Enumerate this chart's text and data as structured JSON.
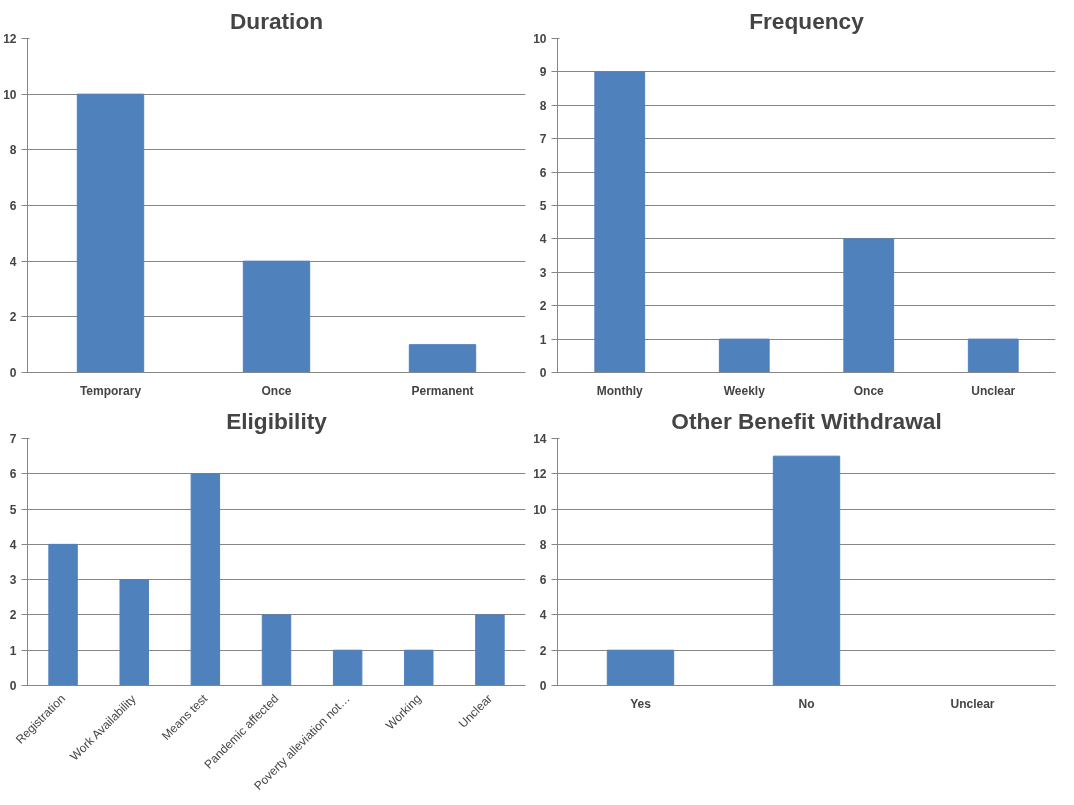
{
  "chart_data": [
    {
      "type": "bar",
      "title": "Duration",
      "categories": [
        "Temporary",
        "Once",
        "Permanent"
      ],
      "values": [
        10,
        4,
        1
      ],
      "color": "#4f81bd",
      "ylim": [
        0,
        12
      ],
      "yticks": [
        0,
        2,
        4,
        6,
        8,
        10,
        12
      ],
      "grid": "y"
    },
    {
      "type": "bar",
      "title": "Frequency",
      "categories": [
        "Monthly",
        "Weekly",
        "Once",
        "Unclear"
      ],
      "values": [
        9,
        1,
        4,
        1
      ],
      "color": "#4f81bd",
      "ylim": [
        0,
        10
      ],
      "yticks": [
        0,
        1,
        2,
        3,
        4,
        5,
        6,
        7,
        8,
        9,
        10
      ],
      "grid": "y"
    },
    {
      "type": "bar",
      "title": "Eligibility",
      "categories": [
        "Registration",
        "Work Availability",
        "Means test",
        "Pandemic affected",
        "Poverty alleviation not…",
        "Working",
        "Unclear"
      ],
      "values": [
        4,
        3,
        6,
        2,
        1,
        1,
        2
      ],
      "color": "#4f81bd",
      "ylim": [
        0,
        7
      ],
      "yticks": [
        0,
        1,
        2,
        3,
        4,
        5,
        6,
        7
      ],
      "grid": "y"
    },
    {
      "type": "bar",
      "title": "Other Benefit Withdrawal",
      "categories": [
        "Yes",
        "No",
        "Unclear"
      ],
      "values": [
        2,
        13,
        0
      ],
      "color": "#4f81bd",
      "ylim": [
        0,
        14
      ],
      "yticks": [
        0,
        2,
        4,
        6,
        8,
        10,
        12,
        14
      ],
      "grid": "y"
    }
  ]
}
